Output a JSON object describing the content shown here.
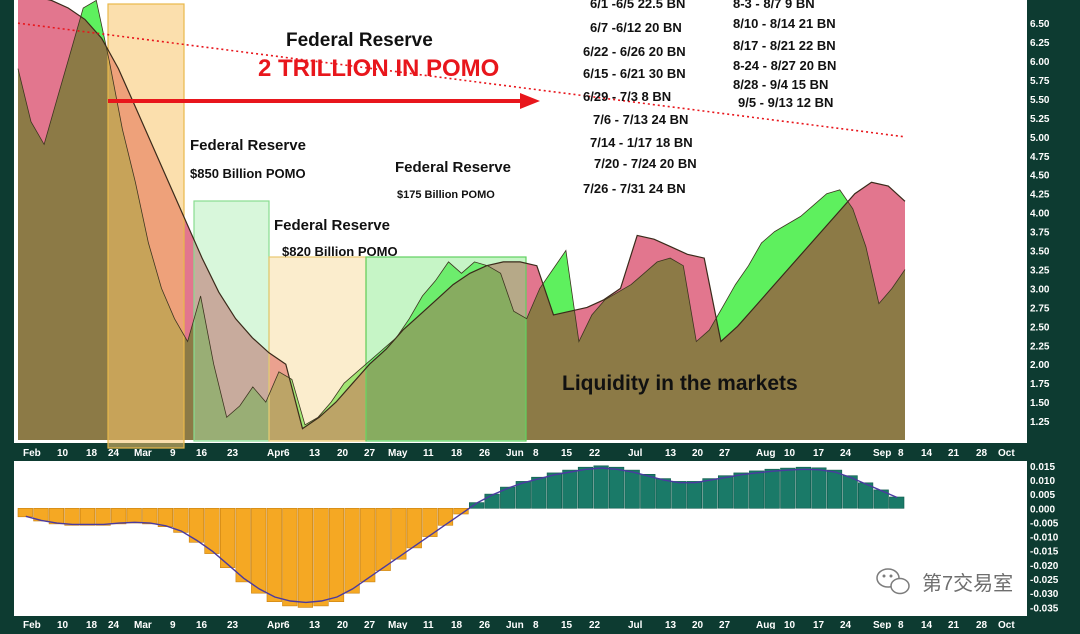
{
  "chart_data": [
    {
      "type": "area",
      "xlabel": "",
      "ylabel": "",
      "ylim": [
        1.0,
        6.7
      ],
      "yticks": [
        "1.25",
        "1.50",
        "1.75",
        "2.00",
        "2.25",
        "2.50",
        "2.75",
        "3.00",
        "3.25",
        "3.50",
        "3.75",
        "4.00",
        "4.25",
        "4.50",
        "4.75",
        "5.00",
        "5.25",
        "5.50",
        "5.75",
        "6.00",
        "6.25",
        "6.50"
      ],
      "xticks": [
        "Feb",
        "10",
        "18",
        "24",
        "Mar",
        "9",
        "16",
        "23",
        "Apr",
        "6",
        "13",
        "20",
        "27",
        "May",
        "11",
        "18",
        "26",
        "Jun",
        "8",
        "15",
        "22",
        "Jul",
        "13",
        "20",
        "27",
        "Aug",
        "10",
        "17",
        "24",
        "Sep",
        "8",
        "14",
        "21",
        "28",
        "Oct"
      ],
      "series": [
        {
          "values": [
            5.9,
            5.2,
            4.9,
            5.5,
            6.1,
            6.7,
            6.8,
            6.0,
            5.1,
            4.4,
            3.6,
            3.0,
            2.6,
            2.3,
            2.9,
            2.0,
            1.3,
            1.45,
            1.7,
            1.5,
            1.9,
            1.8,
            1.2,
            1.3,
            1.5,
            1.75,
            1.9,
            2.05,
            2.2,
            2.35,
            2.6,
            2.9,
            3.1,
            3.35,
            3.2,
            3.35,
            3.3,
            3.2,
            2.7,
            2.6,
            3.0,
            3.25,
            3.5,
            2.3,
            2.65,
            2.85,
            2.95,
            3.05,
            3.2,
            3.35,
            3.4,
            3.3,
            2.3,
            2.45,
            2.75,
            3.05,
            3.3,
            3.6,
            3.75,
            3.85,
            3.95,
            4.1,
            4.25,
            4.3,
            4.05,
            3.55,
            2.8,
            3.0,
            3.25
          ]
        },
        {
          "values": [
            6.9,
            6.85,
            6.8,
            6.7,
            6.55,
            6.3,
            5.9,
            5.4,
            4.9,
            4.4,
            3.9,
            3.4,
            2.95,
            2.6,
            2.35,
            2.15,
            2.0,
            1.15,
            1.3,
            1.5,
            1.75,
            2.0,
            2.2,
            2.45,
            2.65,
            2.85,
            3.05,
            3.2,
            3.3,
            3.35,
            3.35,
            3.3,
            2.65,
            2.7,
            2.75,
            2.85,
            3.0,
            3.7,
            3.65,
            3.55,
            3.45,
            3.4,
            2.3,
            2.5,
            2.75,
            3.0,
            3.25,
            3.5,
            3.75,
            4.0,
            4.25,
            4.4,
            4.35,
            4.15
          ]
        }
      ],
      "dotted_trend": [
        6.5,
        5.0
      ]
    },
    {
      "type": "bar",
      "ylim": [
        -0.037,
        0.016
      ],
      "yticks": [
        "0.015",
        "0.010",
        "0.005",
        "0.000",
        "-0.005",
        "-0.010",
        "-0.015",
        "-0.020",
        "-0.025",
        "-0.030",
        "-0.035"
      ],
      "xticks": [
        "Feb",
        "10",
        "18",
        "24",
        "Mar",
        "9",
        "16",
        "23",
        "Apr",
        "6",
        "13",
        "20",
        "27",
        "May",
        "11",
        "18",
        "26",
        "Jun",
        "8",
        "15",
        "22",
        "Jul",
        "13",
        "20",
        "27",
        "Aug",
        "10",
        "17",
        "24",
        "Sep",
        "8",
        "14",
        "21",
        "28",
        "Oct"
      ],
      "values": [
        -0.003,
        -0.0045,
        -0.0055,
        -0.006,
        -0.006,
        -0.006,
        -0.0055,
        -0.0052,
        -0.0055,
        -0.0065,
        -0.0085,
        -0.012,
        -0.016,
        -0.021,
        -0.026,
        -0.03,
        -0.033,
        -0.0345,
        -0.035,
        -0.0345,
        -0.033,
        -0.03,
        -0.026,
        -0.022,
        -0.018,
        -0.014,
        -0.01,
        -0.006,
        -0.002,
        0.002,
        0.005,
        0.0075,
        0.0095,
        0.011,
        0.0125,
        0.0135,
        0.0145,
        0.015,
        0.0145,
        0.0135,
        0.012,
        0.0105,
        0.0095,
        0.0095,
        0.0105,
        0.0115,
        0.0125,
        0.0132,
        0.0138,
        0.0142,
        0.0145,
        0.0143,
        0.0135,
        0.0115,
        0.009,
        0.0065,
        0.004
      ]
    }
  ],
  "annotations": {
    "fed_top": "Federal Reserve",
    "trillion": "2 TRILLION IN POMO",
    "fed_850_title": "Federal Reserve",
    "fed_850_amount": "$850 Billion POMO",
    "fed_820_title": "Federal Reserve",
    "fed_820_amount": "$820 Billion POMO",
    "fed_175_title": "Federal Reserve",
    "fed_175_amount": "$175 Billion POMO",
    "liquidity": "Liquidity in the markets",
    "schedule_left": [
      "6/1 -6/5 22.5 BN",
      "6/7 -6/12 20 BN",
      "6/22 - 6/26 20 BN",
      "6/15 - 6/21 30 BN",
      "6/29 - 7/3 8 BN",
      "7/6 - 7/13 24 BN",
      "7/14 - 1/17 18 BN",
      "7/20 - 7/24 20 BN",
      "7/26 - 7/31 24 BN"
    ],
    "schedule_right": [
      "8-3 - 8/7 9 BN",
      "8/10 - 8/14 21 BN",
      "8/17 - 8/21 22 BN",
      "8-24 - 8/27 20 BN",
      "8/28 - 9/4 15 BN",
      "9/5 - 9/13 12 BN"
    ]
  },
  "watermark": {
    "text": "第7交易室",
    "icon": "wechat-icon"
  },
  "colors": {
    "background": "#0d3b31",
    "plot_bg": "#ffffff",
    "area_brown": "#8c7a46",
    "area_pink": "#e2768e",
    "area_green": "#5ef05e",
    "bar_orange": "#f5a823",
    "bar_teal": "#1a7a68",
    "arrow_red": "#e8161c"
  }
}
